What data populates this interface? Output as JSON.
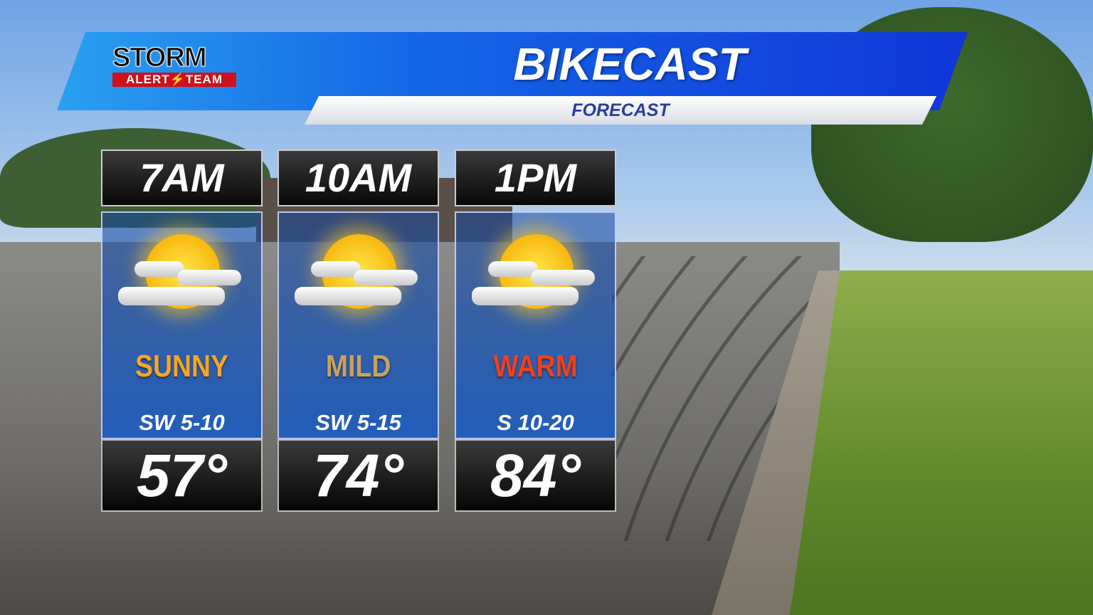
{
  "logo": {
    "line1": "STORM",
    "line2_left": "ALERT",
    "line2_right": "TEAM"
  },
  "header": {
    "title": "BIKECAST",
    "subtitle": "FORECAST"
  },
  "colors": {
    "banner": "#1465e6",
    "subtitle_text": "#2b3d9e",
    "sunny": "#f5a623",
    "mild": "#c9a25a",
    "warm": "#f0401a"
  },
  "forecast": [
    {
      "time": "7AM",
      "icon": "partly-sunny-icon",
      "condition": "SUNNY",
      "condition_color": "#f5a623",
      "wind": "SW 5-10",
      "temp": "57°"
    },
    {
      "time": "10AM",
      "icon": "partly-sunny-icon",
      "condition": "MILD",
      "condition_color": "#c9a25a",
      "wind": "SW 5-15",
      "temp": "74°"
    },
    {
      "time": "1PM",
      "icon": "partly-sunny-icon",
      "condition": "WARM",
      "condition_color": "#f0401a",
      "wind": "S 10-20",
      "temp": "84°"
    }
  ]
}
